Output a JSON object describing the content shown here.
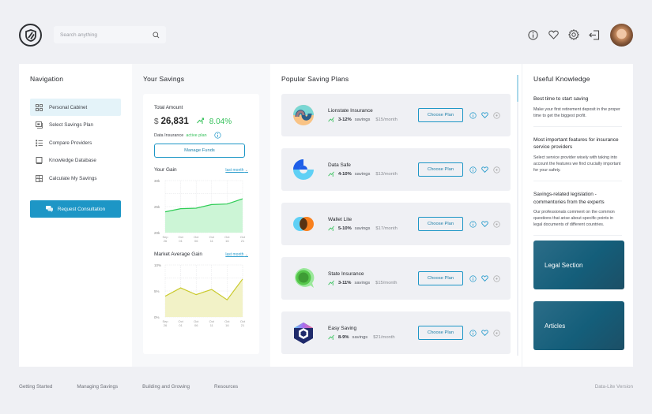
{
  "header": {
    "search_placeholder": "Search anything",
    "icons": [
      "info-icon",
      "heart-icon",
      "gear-icon",
      "logout-icon"
    ]
  },
  "nav": {
    "title": "Navigation",
    "items": [
      {
        "label": "Personal Cabinet",
        "icon": "grid-icon",
        "active": true
      },
      {
        "label": "Select Savings Plan",
        "icon": "plan-icon"
      },
      {
        "label": "Compare Providers",
        "icon": "list-icon"
      },
      {
        "label": "Knowledge Database",
        "icon": "book-icon"
      },
      {
        "label": "Calculate My Savings",
        "icon": "calculator-icon"
      }
    ],
    "cta": "Request Consultation"
  },
  "savings": {
    "title": "Your Savings",
    "total_label": "Total Amount",
    "currency": "$",
    "amount": "26,831",
    "change": "8.04%",
    "plan_prefix": "Data Insurance",
    "plan_status": "active plan",
    "manage_label": "Manage Funds",
    "gain_title": "Your Gain",
    "market_title": "Market Average Gain",
    "period": "last month"
  },
  "chart_data": [
    {
      "type": "area",
      "title": "Your Gain",
      "x": [
        "Sep 26",
        "Oct 01",
        "Oct 06",
        "Oct 11",
        "Oct 16",
        "Oct 21"
      ],
      "values": [
        24000,
        24600,
        24700,
        25400,
        25500,
        26500
      ],
      "yticks": [
        "30k",
        "25k",
        "20k"
      ],
      "ylim": [
        20000,
        30000
      ],
      "color": "#2ecc55",
      "fill": "#ccf5d6"
    },
    {
      "type": "area",
      "title": "Market Average Gain",
      "x": [
        "Sep 26",
        "Oct 01",
        "Oct 06",
        "Oct 11",
        "Oct 16",
        "Oct 21"
      ],
      "values": [
        4.0,
        5.6,
        4.3,
        5.3,
        3.3,
        7.3
      ],
      "yticks": [
        "10%",
        "5%",
        "0%"
      ],
      "ylim": [
        0,
        10
      ],
      "color": "#c9c92a",
      "fill": "#f2f2c7"
    }
  ],
  "plans": {
    "title": "Popular Saving Plans",
    "choose_label": "Choose Plan",
    "items": [
      {
        "name": "Lionstate Insurance",
        "range": "3-12%",
        "savings": "savings",
        "price": "$15/month"
      },
      {
        "name": "Data Safe",
        "range": "4-10%",
        "savings": "savings",
        "price": "$13/month"
      },
      {
        "name": "Wallet Lite",
        "range": "5-10%",
        "savings": "savings",
        "price": "$17/month"
      },
      {
        "name": "State Insurance",
        "range": "3-11%",
        "savings": "savings",
        "price": "$15/month"
      },
      {
        "name": "Easy Saving",
        "range": "8-9%",
        "savings": "savings",
        "price": "$21/month"
      }
    ]
  },
  "knowledge": {
    "title": "Useful Knowledge",
    "items": [
      {
        "title": "Best time to start saving",
        "text": "Make your first retirement deposit in the proper time to get the biggest profit."
      },
      {
        "title": "Most important features for insurance service providers",
        "text": "Select service provider wisely with taking into account the features we find crucially important for your safety."
      },
      {
        "title": "Savings-related legislation - commentories from the experts",
        "text": "Our professionals comment on the common questions that arise about specific points in legal documents of different countries."
      }
    ],
    "tiles": [
      "Legal Section",
      "Articles"
    ]
  },
  "footer": {
    "links": [
      "Getting Started",
      "Managing Savings",
      "Building and Growing",
      "Resources"
    ],
    "version": "Data-Lite Version"
  }
}
